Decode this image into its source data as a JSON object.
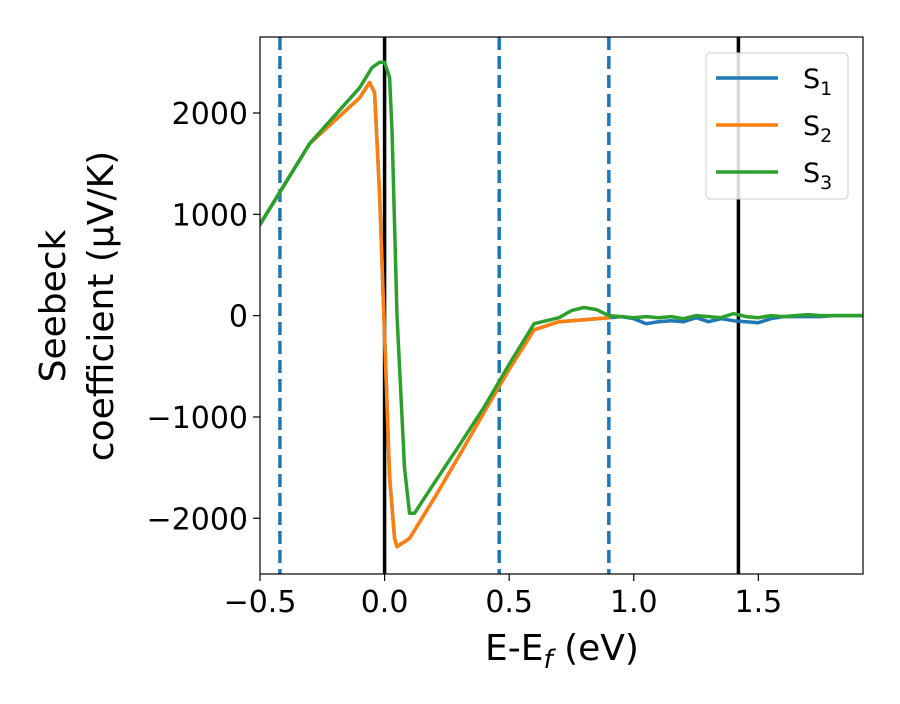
{
  "chart_data": {
    "type": "line",
    "title": "",
    "xlabel": "E-E",
    "xlabel_sub": "f",
    "xlabel_unit": " (eV)",
    "ylabel_line1": "Seebeck",
    "ylabel_line2": "coefficient  (μV/K)",
    "xlim": [
      -0.5,
      1.92
    ],
    "ylim": [
      -2550,
      2750
    ],
    "xticks": [
      -0.5,
      0.0,
      0.5,
      1.0,
      1.5
    ],
    "xtick_labels": [
      "−0.5",
      "0.0",
      "0.5",
      "1.0",
      "1.5"
    ],
    "yticks": [
      -2000,
      -1000,
      0,
      1000,
      2000
    ],
    "ytick_labels": [
      "−2000",
      "−1000",
      "0",
      "1000",
      "2000"
    ],
    "grid": false,
    "legend_position": "top-right",
    "vertical_lines": [
      {
        "x": -0.42,
        "style": "dashed",
        "color": "#1f77b4"
      },
      {
        "x": 0.0,
        "style": "solid",
        "color": "#000000"
      },
      {
        "x": 0.46,
        "style": "dashed",
        "color": "#1f77b4"
      },
      {
        "x": 0.9,
        "style": "dashed",
        "color": "#1f77b4"
      },
      {
        "x": 1.42,
        "style": "solid",
        "color": "#000000"
      }
    ],
    "series": [
      {
        "name": "S",
        "sub": "1",
        "color": "#1f77b4",
        "x": [
          -0.5,
          -0.3,
          -0.1,
          -0.06,
          -0.04,
          -0.02,
          0.0,
          0.02,
          0.04,
          0.05,
          0.1,
          0.2,
          0.3,
          0.4,
          0.5,
          0.6,
          0.7,
          0.8,
          0.85,
          0.9,
          0.95,
          1.0,
          1.05,
          1.1,
          1.15,
          1.2,
          1.25,
          1.3,
          1.35,
          1.4,
          1.45,
          1.5,
          1.55,
          1.6,
          1.65,
          1.7,
          1.75,
          1.8,
          1.85,
          1.92
        ],
        "y": [
          900,
          1700,
          2150,
          2300,
          2200,
          1200,
          -200,
          -1600,
          -2200,
          -2280,
          -2200,
          -1800,
          -1380,
          -950,
          -530,
          -140,
          -60,
          -40,
          -30,
          -20,
          -10,
          -30,
          -80,
          -60,
          -50,
          -60,
          -20,
          -60,
          -30,
          -50,
          -60,
          -70,
          -30,
          -10,
          -10,
          -10,
          -10,
          0,
          0,
          0
        ]
      },
      {
        "name": "S",
        "sub": "2",
        "color": "#ff7f0e",
        "x": [
          -0.5,
          -0.3,
          -0.1,
          -0.06,
          -0.04,
          -0.02,
          0.0,
          0.02,
          0.04,
          0.05,
          0.1,
          0.2,
          0.3,
          0.4,
          0.5,
          0.6,
          0.7,
          0.8,
          0.85,
          0.9
        ],
        "y": [
          900,
          1700,
          2150,
          2300,
          2200,
          1200,
          -200,
          -1600,
          -2200,
          -2280,
          -2200,
          -1800,
          -1380,
          -950,
          -530,
          -140,
          -60,
          -40,
          -30,
          -20
        ]
      },
      {
        "name": "S",
        "sub": "3",
        "color": "#2ca02c",
        "x": [
          -0.5,
          -0.3,
          -0.1,
          -0.05,
          -0.02,
          0.0,
          0.02,
          0.03,
          0.05,
          0.08,
          0.1,
          0.12,
          0.2,
          0.3,
          0.4,
          0.5,
          0.6,
          0.7,
          0.75,
          0.8,
          0.85,
          0.9,
          0.95,
          1.0,
          1.05,
          1.1,
          1.15,
          1.2,
          1.25,
          1.3,
          1.35,
          1.4,
          1.45,
          1.5,
          1.55,
          1.6,
          1.65,
          1.7,
          1.75,
          1.8,
          1.85,
          1.92
        ],
        "y": [
          900,
          1700,
          2250,
          2450,
          2500,
          2500,
          2350,
          1800,
          0,
          -1500,
          -1950,
          -1950,
          -1650,
          -1280,
          -900,
          -480,
          -80,
          -20,
          50,
          80,
          60,
          0,
          -10,
          -20,
          -10,
          -20,
          -10,
          -30,
          0,
          -10,
          -20,
          20,
          -10,
          -20,
          0,
          -10,
          0,
          10,
          0,
          0,
          0,
          0
        ]
      }
    ]
  }
}
